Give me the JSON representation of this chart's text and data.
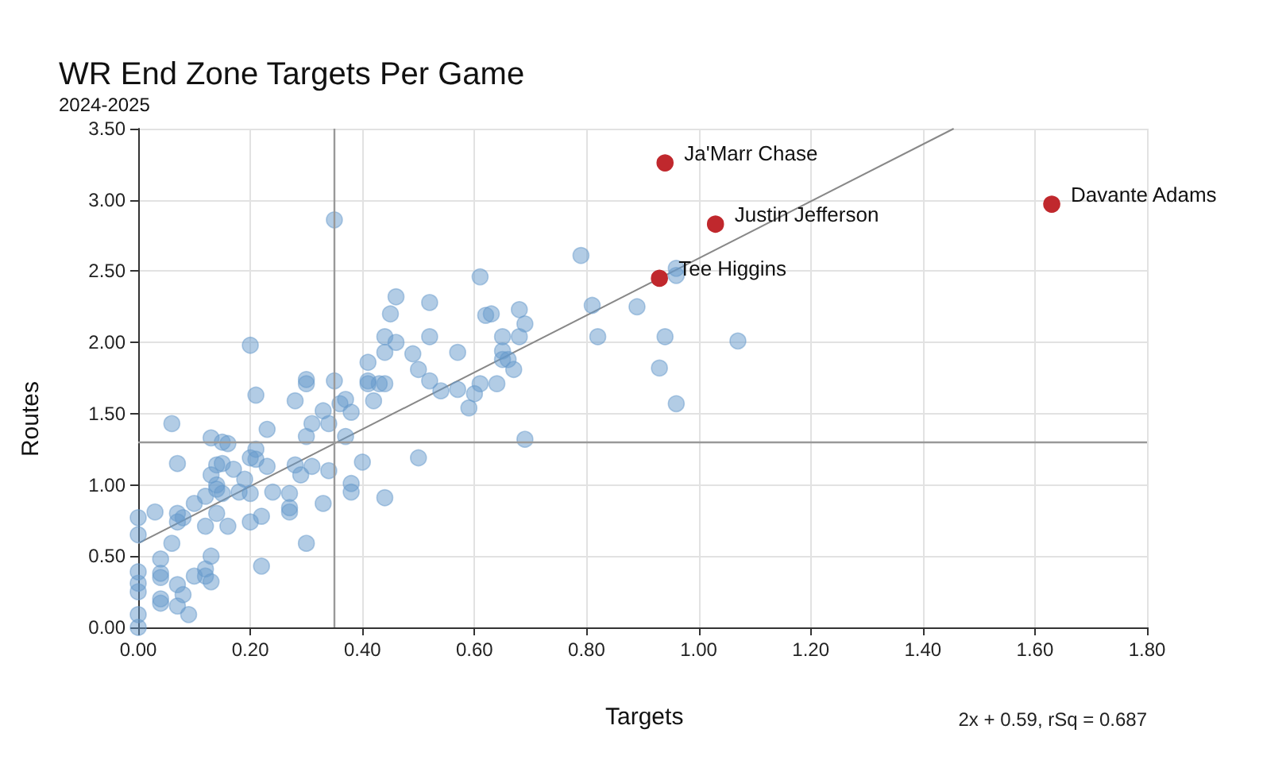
{
  "chart_data": {
    "type": "scatter",
    "title": "WR End Zone Targets Per Game",
    "subtitle": "2024-2025",
    "xlabel": "Targets",
    "ylabel": "Routes",
    "xlim": [
      0,
      1.8
    ],
    "ylim": [
      0,
      3.5
    ],
    "xticks": [
      {
        "value": 0,
        "label": "0.00"
      },
      {
        "value": 0.2,
        "label": "0.20"
      },
      {
        "value": 0.4,
        "label": "0.40"
      },
      {
        "value": 0.6,
        "label": "0.60"
      },
      {
        "value": 0.8,
        "label": "0.80"
      },
      {
        "value": 1,
        "label": "1.00"
      },
      {
        "value": 1.2,
        "label": "1.20"
      },
      {
        "value": 1.4,
        "label": "1.40"
      },
      {
        "value": 1.6,
        "label": "1.60"
      },
      {
        "value": 1.8,
        "label": "1.80"
      }
    ],
    "yticks": [
      {
        "value": 0,
        "label": "0.00"
      },
      {
        "value": 0.5,
        "label": "0.50"
      },
      {
        "value": 1,
        "label": "1.00"
      },
      {
        "value": 1.5,
        "label": "1.50"
      },
      {
        "value": 2,
        "label": "2.00"
      },
      {
        "value": 2.5,
        "label": "2.50"
      },
      {
        "value": 3,
        "label": "3.00"
      },
      {
        "value": 3.5,
        "label": "3.50"
      }
    ],
    "grid": true,
    "marker": "circle",
    "ref_lines": [
      {
        "axis": "x",
        "value": 0.35,
        "color": "#999999"
      },
      {
        "axis": "y",
        "value": 1.3,
        "color": "#999999"
      }
    ],
    "series": [
      {
        "color": "#6699cc",
        "x": [
          0,
          0,
          0,
          0,
          0,
          0,
          0,
          0.04,
          0.04,
          0.04,
          0.04,
          0.04,
          0.06,
          0.03,
          0.06,
          0.07,
          0.07,
          0.07,
          0.08,
          0.07,
          0.08,
          0.07,
          0.09,
          0.1,
          0.1,
          0.12,
          0.12,
          0.12,
          0.12,
          0.13,
          0.13,
          0.13,
          0.14,
          0.13,
          0.14,
          0.14,
          0.15,
          0.14,
          0.15,
          0.15,
          0.16,
          0.17,
          0.16,
          0.19,
          0.18,
          0.2,
          0.2,
          0.2,
          0.21,
          0.21,
          0.21,
          0.22,
          0.23,
          0.23,
          0.24,
          0.22,
          0.27,
          0.27,
          0.27,
          0.28,
          0.28,
          0.29,
          0.31,
          0.3,
          0.3,
          0.3,
          0.3,
          0.31,
          0.33,
          0.33,
          0.34,
          0.34,
          0.35,
          0.36,
          0.37,
          0.37,
          0.38,
          0.38,
          0.38,
          0.4,
          0.41,
          0.42,
          0.43,
          0.44,
          0.35,
          0.2,
          0.61,
          0.46,
          0.52,
          0.45,
          0.62,
          0.63,
          0.68,
          0.69,
          0.44,
          0.46,
          0.52,
          0.65,
          0.68,
          0.44,
          0.49,
          0.57,
          0.65,
          0.65,
          0.66,
          0.67,
          0.41,
          0.5,
          0.52,
          0.41,
          0.44,
          0.54,
          0.57,
          0.61,
          0.6,
          0.64,
          0.59,
          0.69,
          0.5,
          0.79,
          0.81,
          0.82,
          0.89,
          0.94,
          1.07,
          0.93,
          0.96,
          0.96,
          0.96
        ],
        "values": [
          0,
          0.09,
          0.25,
          0.31,
          0.39,
          0.65,
          0.77,
          0.17,
          0.2,
          0.35,
          0.38,
          0.48,
          0.59,
          0.81,
          1.43,
          1.15,
          0.8,
          0.74,
          0.77,
          0.3,
          0.23,
          0.15,
          0.09,
          0.36,
          0.87,
          0.92,
          0.71,
          0.41,
          0.36,
          0.32,
          0.5,
          1.33,
          1.14,
          1.07,
          1,
          0.97,
          0.94,
          0.8,
          1.15,
          1.3,
          1.29,
          1.11,
          0.71,
          1.04,
          0.95,
          1.19,
          0.94,
          0.74,
          1.63,
          1.25,
          1.18,
          0.43,
          1.39,
          1.13,
          0.95,
          0.78,
          0.94,
          0.84,
          0.81,
          1.59,
          1.14,
          1.07,
          1.13,
          0.59,
          1.74,
          1.71,
          1.34,
          1.43,
          1.52,
          0.87,
          1.1,
          1.43,
          1.73,
          1.57,
          1.6,
          1.34,
          1.51,
          1.01,
          0.95,
          1.16,
          1.73,
          1.59,
          1.71,
          0.91,
          2.86,
          1.98,
          2.46,
          2.32,
          2.28,
          2.2,
          2.19,
          2.2,
          2.23,
          2.13,
          2.04,
          2,
          2.04,
          2.04,
          2.04,
          1.93,
          1.92,
          1.93,
          1.94,
          1.88,
          1.88,
          1.81,
          1.86,
          1.81,
          1.73,
          1.71,
          1.71,
          1.66,
          1.67,
          1.71,
          1.64,
          1.71,
          1.54,
          1.32,
          1.19,
          2.61,
          2.26,
          2.04,
          2.25,
          2.04,
          2.01,
          1.82,
          1.57,
          2.47,
          2.52
        ]
      },
      {
        "color": "#c0282d",
        "x": [
          0.94,
          1.03,
          1.63,
          0.93
        ],
        "values": [
          3.26,
          2.83,
          2.97,
          2.45
        ]
      },
      {
        "type": "line",
        "marker": "none",
        "color": "#888888",
        "x": [
          0,
          1.455
        ],
        "values": [
          0.59,
          3.5
        ]
      }
    ],
    "annotations": [
      {
        "text": "Ja'Marr Chase",
        "x": 0.94,
        "y": 3.26
      },
      {
        "text": "Justin Jefferson",
        "x": 1.03,
        "y": 2.83
      },
      {
        "text": "Davante Adams",
        "x": 1.63,
        "y": 2.97
      },
      {
        "text": "Tee Higgins",
        "x": 0.93,
        "y": 2.45
      },
      "2x + 0.59, rSq = 0.687"
    ]
  }
}
